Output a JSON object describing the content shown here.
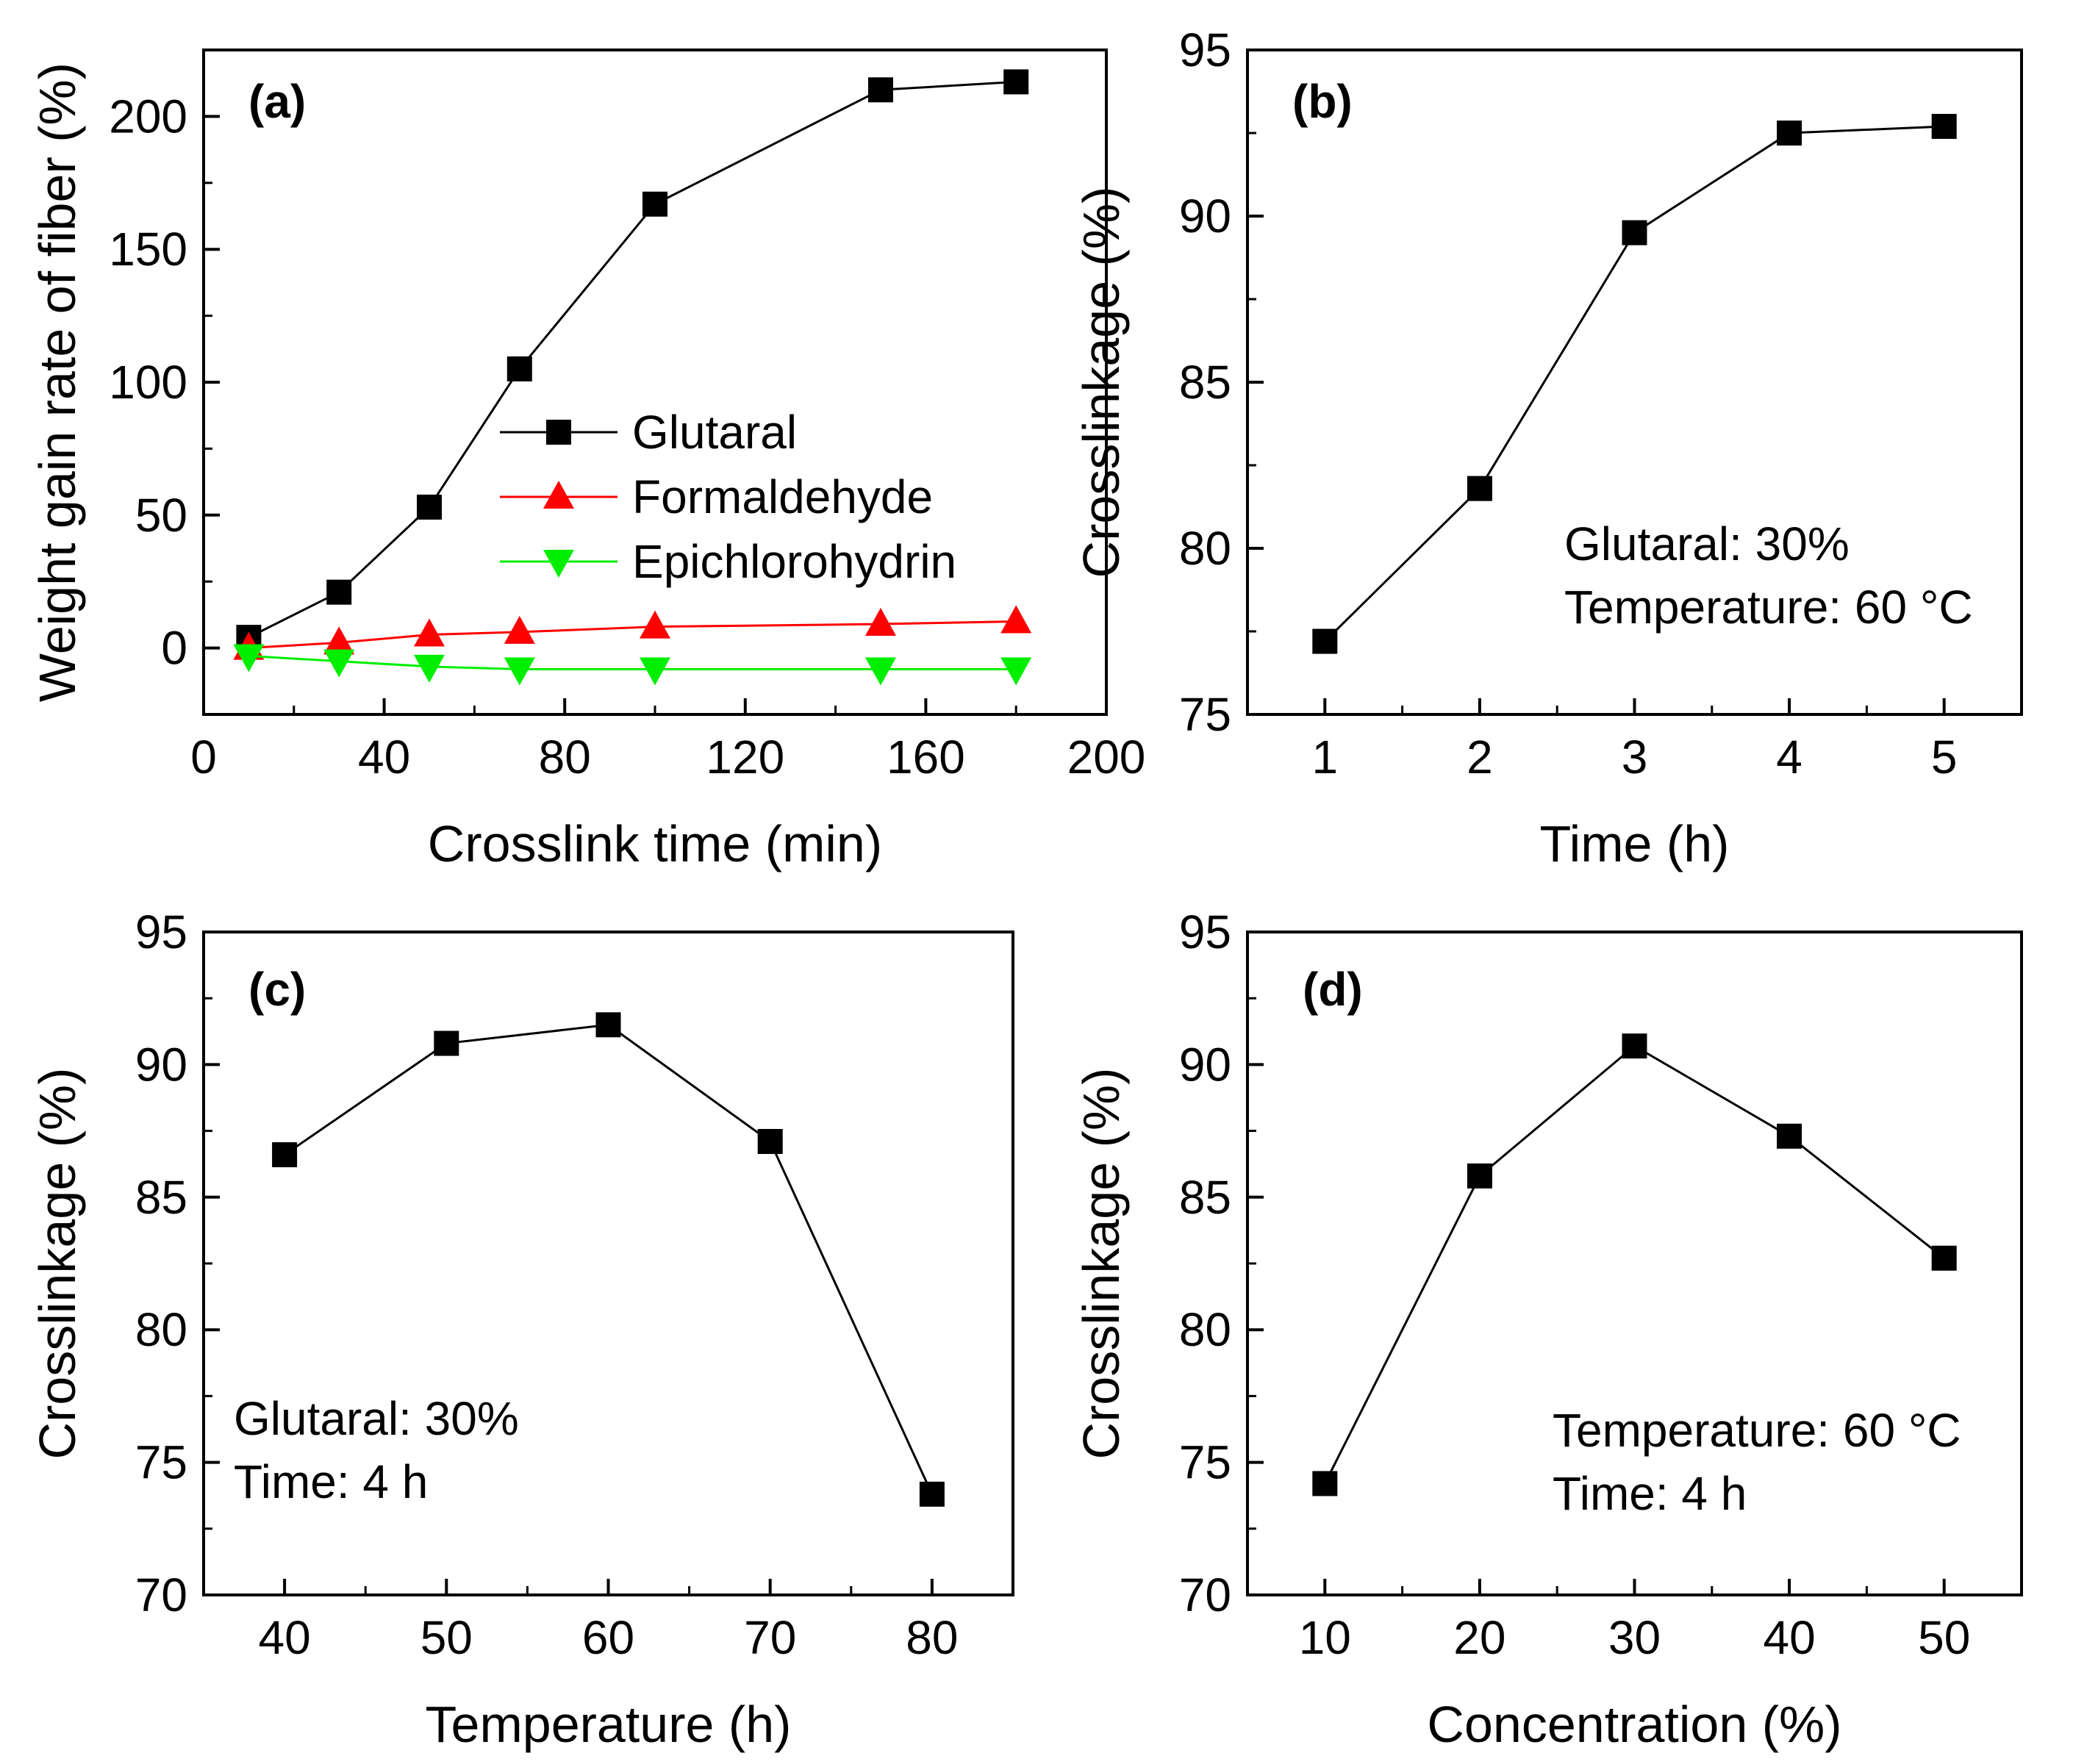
{
  "chart_data": [
    {
      "id": "a",
      "type": "line",
      "panel_label": "(a)",
      "xlabel": "Crosslink time (min)",
      "ylabel": "Weight gain rate of fiber (%)",
      "xlim": [
        0,
        200
      ],
      "ylim": [
        -25,
        225
      ],
      "xticks": [
        0,
        40,
        80,
        120,
        160,
        200
      ],
      "yticks": [
        0,
        50,
        100,
        150,
        200
      ],
      "x": [
        10,
        30,
        50,
        70,
        100,
        150,
        180
      ],
      "series": [
        {
          "name": "Glutaral",
          "marker": "square",
          "color": "#000000",
          "values": [
            4,
            21,
            53,
            105,
            167,
            210,
            213
          ]
        },
        {
          "name": "Formaldehyde",
          "marker": "triangle-up",
          "color": "#ff0000",
          "values": [
            0,
            2,
            5,
            6,
            8,
            9,
            10
          ]
        },
        {
          "name": "Epichlorohydrin",
          "marker": "triangle-down",
          "color": "#00ee00",
          "values": [
            -3,
            -5,
            -7,
            -8,
            -8,
            -8,
            -8
          ]
        }
      ],
      "legend": "center-right",
      "notes": []
    },
    {
      "id": "b",
      "type": "line",
      "panel_label": "(b)",
      "xlabel": "Time (h)",
      "ylabel": "Crosslinkage (%)",
      "xlim": [
        0.5,
        5.5
      ],
      "ylim": [
        75,
        95
      ],
      "xticks": [
        1,
        2,
        3,
        4,
        5
      ],
      "yticks": [
        75,
        80,
        85,
        90,
        95
      ],
      "x": [
        1,
        2,
        3,
        4,
        5
      ],
      "series": [
        {
          "name": "Crosslinkage",
          "marker": "square",
          "color": "#000000",
          "values": [
            77.2,
            81.8,
            89.5,
            92.5,
            92.7
          ]
        }
      ],
      "notes": [
        "Glutaral: 30%",
        "Temperature: 60 °C"
      ]
    },
    {
      "id": "c",
      "type": "line",
      "panel_label": "(c)",
      "xlabel": "Temperature (h)",
      "ylabel": "Crosslinkage (%)",
      "xlim": [
        35,
        85
      ],
      "ylim": [
        70,
        95
      ],
      "xticks": [
        40,
        50,
        60,
        70,
        80
      ],
      "yticks": [
        70,
        75,
        80,
        85,
        90,
        95
      ],
      "x": [
        40,
        50,
        60,
        70,
        80
      ],
      "series": [
        {
          "name": "Crosslinkage",
          "marker": "square",
          "color": "#000000",
          "values": [
            86.6,
            90.8,
            91.5,
            87.1,
            73.8
          ]
        }
      ],
      "notes": [
        "Glutaral: 30%",
        "Time: 4 h"
      ]
    },
    {
      "id": "d",
      "type": "line",
      "panel_label": "(d)",
      "xlabel": "Concentration (%)",
      "ylabel": "Crosslinkage (%)",
      "xlim": [
        5,
        55
      ],
      "ylim": [
        70,
        95
      ],
      "xticks": [
        10,
        20,
        30,
        40,
        50
      ],
      "yticks": [
        70,
        75,
        80,
        85,
        90,
        95
      ],
      "x": [
        10,
        20,
        30,
        40,
        50
      ],
      "series": [
        {
          "name": "Crosslinkage",
          "marker": "square",
          "color": "#000000",
          "values": [
            74.2,
            85.8,
            90.7,
            87.3,
            82.7
          ]
        }
      ],
      "notes": [
        "Temperature: 60 °C",
        "Time: 4 h"
      ]
    }
  ]
}
